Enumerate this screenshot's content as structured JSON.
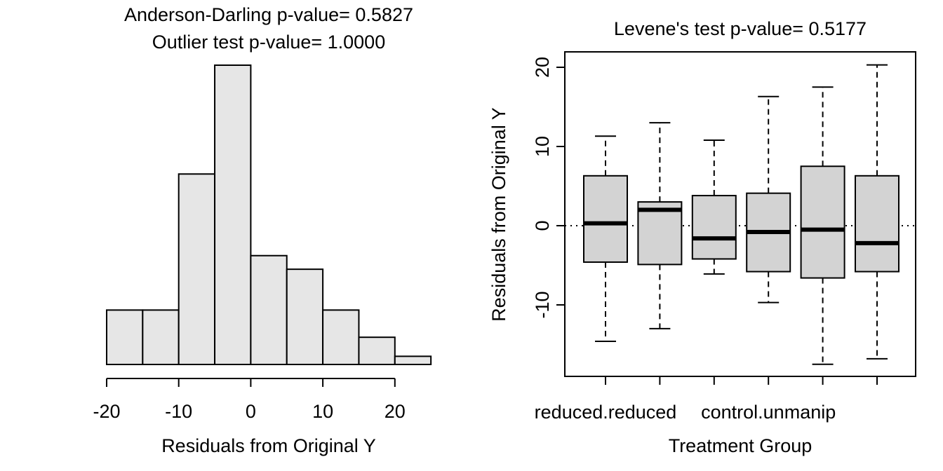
{
  "chart_data": [
    {
      "type": "bar",
      "subtype": "histogram",
      "title": [
        "Anderson-Darling p-value= 0.5827",
        "Outlier test p-value= 1.0000"
      ],
      "xlabel": "Residuals from Original Y",
      "ylabel": "",
      "bin_edges": [
        -20,
        -15,
        -10,
        -5,
        0,
        5,
        10,
        15,
        20,
        25
      ],
      "values": [
        2,
        2,
        7,
        11,
        4,
        3.5,
        2,
        1,
        0.3
      ],
      "x_ticks": [
        "-20",
        "-10",
        "0",
        "10",
        "20"
      ],
      "x_tick_values": [
        -20,
        -10,
        0,
        10,
        20
      ],
      "y_axis_shown": false,
      "bar_color": "#e6e6e6"
    },
    {
      "type": "boxplot",
      "title": "Levene's test p-value= 0.5177",
      "xlabel": "Treatment Group",
      "ylabel": "Residuals from Original Y",
      "ylim": [
        -17.5,
        20
      ],
      "y_ticks": [
        "-10",
        "0",
        "10",
        "20"
      ],
      "y_tick_values": [
        -10,
        0,
        10,
        20
      ],
      "x_tick_labels_shown": [
        "reduced.reduced",
        "",
        "",
        "control.unmanip",
        "",
        ""
      ],
      "reference_line_y": 0,
      "box_color": "#d3d3d3",
      "boxes": [
        {
          "whisker_low": -14.6,
          "q1": -4.6,
          "median": 0.3,
          "q3": 6.3,
          "whisker_high": 11.3
        },
        {
          "whisker_low": -13.0,
          "q1": -4.9,
          "median": 2.0,
          "q3": 3.0,
          "whisker_high": 13.0
        },
        {
          "whisker_low": -6.1,
          "q1": -4.2,
          "median": -1.6,
          "q3": 3.8,
          "whisker_high": 10.8
        },
        {
          "whisker_low": -9.7,
          "q1": -5.8,
          "median": -0.8,
          "q3": 4.1,
          "whisker_high": 16.3
        },
        {
          "whisker_low": -17.5,
          "q1": -6.6,
          "median": -0.5,
          "q3": 7.5,
          "whisker_high": 17.5
        },
        {
          "whisker_low": -16.8,
          "q1": -5.8,
          "median": -2.2,
          "q3": 6.3,
          "whisker_high": 20.3
        }
      ]
    }
  ]
}
